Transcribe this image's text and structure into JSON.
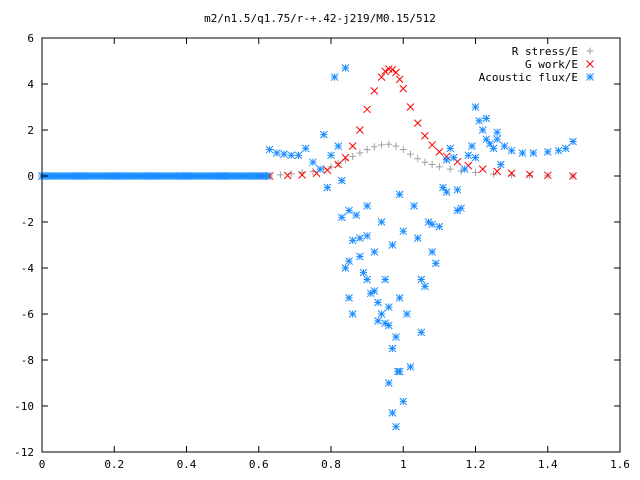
{
  "chart_data": {
    "type": "scatter",
    "title": "m2/n1.5/q1.75/r-+.42-j219/M0.15/512",
    "xlabel": "",
    "ylabel": "",
    "xlim": [
      0,
      1.6
    ],
    "ylim": [
      -12,
      6
    ],
    "x_ticks": [
      "0",
      "0.2",
      "0.4",
      "0.6",
      "0.8",
      "1",
      "1.2",
      "1.4",
      "1.6"
    ],
    "y_ticks": [
      "6",
      "4",
      "2",
      "0",
      "-2",
      "-4",
      "-6",
      "-8",
      "-10",
      "-12"
    ],
    "grid": false,
    "legend_position": "top-right",
    "series": [
      {
        "name": "R stress/E",
        "marker": "plus",
        "color": "#a0a0a0",
        "x": [
          0.63,
          0.66,
          0.69,
          0.72,
          0.75,
          0.78,
          0.8,
          0.82,
          0.84,
          0.86,
          0.88,
          0.9,
          0.92,
          0.94,
          0.96,
          0.98,
          1.0,
          1.02,
          1.04,
          1.06,
          1.08,
          1.1,
          1.13,
          1.16,
          1.2,
          1.25,
          1.3,
          1.35,
          1.4,
          1.47
        ],
        "y": [
          0.0,
          0.05,
          0.1,
          0.15,
          0.2,
          0.3,
          0.4,
          0.55,
          0.7,
          0.85,
          1.0,
          1.15,
          1.27,
          1.35,
          1.38,
          1.3,
          1.15,
          0.95,
          0.75,
          0.6,
          0.5,
          0.4,
          0.3,
          0.22,
          0.15,
          0.08,
          0.04,
          0.02,
          0.01,
          0.0
        ]
      },
      {
        "name": "G work/E",
        "marker": "cross",
        "color": "#ff0000",
        "x": [
          0.63,
          0.68,
          0.72,
          0.76,
          0.79,
          0.82,
          0.84,
          0.86,
          0.88,
          0.9,
          0.92,
          0.94,
          0.95,
          0.96,
          0.97,
          0.98,
          0.99,
          1.0,
          1.02,
          1.04,
          1.06,
          1.08,
          1.1,
          1.12,
          1.15,
          1.18,
          1.22,
          1.26,
          1.3,
          1.35,
          1.4,
          1.47
        ],
        "y": [
          0.0,
          0.02,
          0.05,
          0.12,
          0.25,
          0.5,
          0.8,
          1.3,
          2.0,
          2.9,
          3.7,
          4.3,
          4.55,
          4.65,
          4.62,
          4.5,
          4.2,
          3.8,
          3.0,
          2.3,
          1.75,
          1.35,
          1.05,
          0.85,
          0.62,
          0.45,
          0.3,
          0.2,
          0.12,
          0.07,
          0.03,
          0.0
        ]
      },
      {
        "name": "Acoustic flux/E",
        "marker": "star",
        "color": "#1a8cff",
        "x": [
          0.0,
          0.1,
          0.2,
          0.3,
          0.4,
          0.5,
          0.6,
          0.63,
          0.65,
          0.67,
          0.69,
          0.71,
          0.73,
          0.75,
          0.77,
          0.78,
          0.79,
          0.8,
          0.81,
          0.82,
          0.83,
          0.84,
          0.85,
          0.86,
          0.87,
          0.88,
          0.89,
          0.9,
          0.91,
          0.92,
          0.93,
          0.94,
          0.95,
          0.96,
          0.97,
          0.98,
          0.99,
          1.0,
          1.01,
          1.02,
          1.03,
          1.04,
          1.05,
          1.06,
          1.07,
          1.08,
          1.09,
          1.1,
          1.11,
          1.12,
          1.13,
          1.14,
          1.15,
          1.16,
          1.17,
          1.18,
          1.19,
          1.2,
          1.21,
          1.22,
          1.23,
          1.24,
          1.25,
          1.26,
          1.27,
          1.28,
          1.3,
          1.33,
          1.36,
          1.4,
          1.43,
          1.45,
          1.47,
          0.84,
          0.85,
          0.86,
          0.9,
          0.92,
          0.94,
          0.95,
          0.96,
          0.97,
          0.98,
          0.99,
          1.0,
          0.96,
          0.97,
          0.985,
          0.83,
          0.85,
          0.88,
          0.9,
          0.93,
          0.99,
          1.05,
          1.08,
          1.12,
          1.15,
          1.2,
          1.23,
          1.26
        ],
        "y": [
          0.0,
          0.0,
          0.0,
          0.0,
          0.0,
          0.0,
          0.0,
          1.15,
          1.0,
          0.95,
          0.9,
          0.9,
          1.2,
          0.6,
          0.3,
          1.8,
          -0.5,
          0.9,
          4.3,
          1.3,
          -0.2,
          4.7,
          -1.5,
          -2.8,
          -1.7,
          -3.5,
          -4.2,
          -2.6,
          -5.1,
          -3.3,
          -5.5,
          -2.0,
          -4.5,
          -6.5,
          -3.0,
          -7.0,
          -5.3,
          -2.4,
          -6.0,
          -8.3,
          -1.3,
          -2.7,
          -6.8,
          -4.8,
          -2.0,
          -3.3,
          -3.8,
          -2.2,
          -0.5,
          -0.7,
          1.2,
          0.8,
          -0.6,
          -1.4,
          0.3,
          0.9,
          1.3,
          3.0,
          2.4,
          2.0,
          1.6,
          1.4,
          1.2,
          1.9,
          0.5,
          1.3,
          1.1,
          1.0,
          1.0,
          1.05,
          1.1,
          1.2,
          1.5,
          -4.0,
          -5.3,
          -6.0,
          -4.5,
          -5.0,
          -6.0,
          -6.4,
          -9.0,
          -10.3,
          -10.9,
          -8.5,
          -9.8,
          -5.7,
          -7.5,
          -8.5,
          -1.8,
          -3.7,
          -2.7,
          -1.3,
          -6.3,
          -0.8,
          -4.5,
          -2.1,
          0.7,
          -1.5,
          0.8,
          2.5,
          1.6
        ]
      }
    ]
  }
}
